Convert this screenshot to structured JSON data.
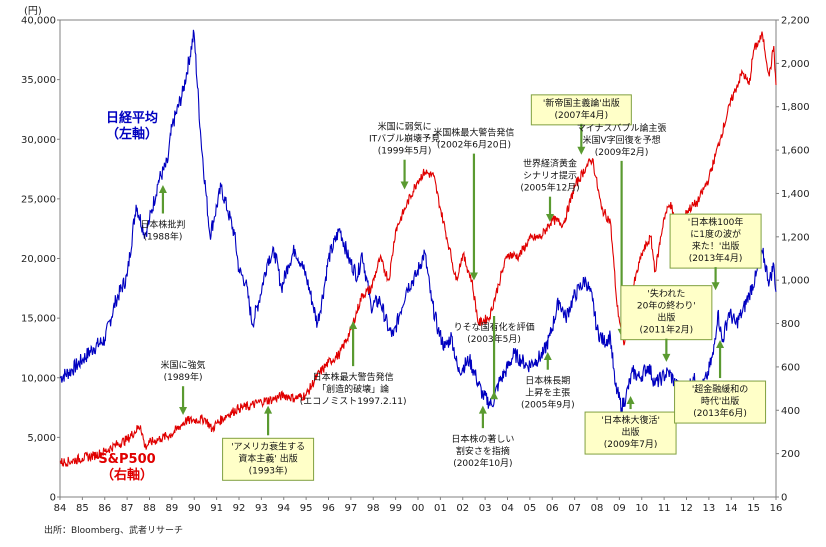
{
  "chart_data": {
    "type": "line",
    "y_unit_label": "(円)",
    "x_tick_labels": [
      "84",
      "85",
      "86",
      "87",
      "88",
      "89",
      "90",
      "91",
      "92",
      "93",
      "94",
      "95",
      "96",
      "97",
      "98",
      "99",
      "00",
      "01",
      "02",
      "03",
      "04",
      "05",
      "06",
      "07",
      "08",
      "09",
      "10",
      "11",
      "12",
      "13",
      "14",
      "15",
      "16"
    ],
    "x_range": [
      1984,
      2016
    ],
    "left_axis": {
      "ticks": [
        "0",
        "5,000",
        "10,000",
        "15,000",
        "20,000",
        "25,000",
        "30,000",
        "35,000",
        "40,000"
      ],
      "ylim": [
        0,
        40000
      ]
    },
    "right_axis": {
      "ticks": [
        "0",
        "200",
        "400",
        "600",
        "800",
        "1,000",
        "1,200",
        "1,400",
        "1,600",
        "1,800",
        "2,000",
        "2,200"
      ],
      "ylim": [
        0,
        2200
      ]
    },
    "series": [
      {
        "name": "日経平均\n（左軸）",
        "axis": "left",
        "color": "#0000c0",
        "points": [
          [
            1984.0,
            10000
          ],
          [
            1984.5,
            10600
          ],
          [
            1985.0,
            11500
          ],
          [
            1985.5,
            12500
          ],
          [
            1986.0,
            13200
          ],
          [
            1986.5,
            16500
          ],
          [
            1987.0,
            18500
          ],
          [
            1987.4,
            24500
          ],
          [
            1987.8,
            22000
          ],
          [
            1988.0,
            23200
          ],
          [
            1988.4,
            26500
          ],
          [
            1988.8,
            28000
          ],
          [
            1989.0,
            31000
          ],
          [
            1989.5,
            34000
          ],
          [
            1989.99,
            38900
          ],
          [
            1990.3,
            30000
          ],
          [
            1990.7,
            22000
          ],
          [
            1990.9,
            23500
          ],
          [
            1991.2,
            26000
          ],
          [
            1991.5,
            24000
          ],
          [
            1991.8,
            22000
          ],
          [
            1992.0,
            19000
          ],
          [
            1992.3,
            18000
          ],
          [
            1992.6,
            14500
          ],
          [
            1992.9,
            16500
          ],
          [
            1993.3,
            20000
          ],
          [
            1993.6,
            20500
          ],
          [
            1993.9,
            17500
          ],
          [
            1994.2,
            19500
          ],
          [
            1994.5,
            20800
          ],
          [
            1994.8,
            19500
          ],
          [
            1995.0,
            18500
          ],
          [
            1995.3,
            16200
          ],
          [
            1995.5,
            14500
          ],
          [
            1995.8,
            17500
          ],
          [
            1996.0,
            20000
          ],
          [
            1996.5,
            22500
          ],
          [
            1996.9,
            20000
          ],
          [
            1997.3,
            18500
          ],
          [
            1997.5,
            20500
          ],
          [
            1997.9,
            16000
          ],
          [
            1998.3,
            16500
          ],
          [
            1998.7,
            14000
          ],
          [
            1998.9,
            13500
          ],
          [
            1999.2,
            15500
          ],
          [
            1999.5,
            17500
          ],
          [
            1999.9,
            18500
          ],
          [
            2000.3,
            20500
          ],
          [
            2000.6,
            16500
          ],
          [
            2000.9,
            14000
          ],
          [
            2001.2,
            12500
          ],
          [
            2001.5,
            13500
          ],
          [
            2001.8,
            10500
          ],
          [
            2002.3,
            11500
          ],
          [
            2002.6,
            10000
          ],
          [
            2002.9,
            8500
          ],
          [
            2003.3,
            7700
          ],
          [
            2003.6,
            9500
          ],
          [
            2003.9,
            10500
          ],
          [
            2004.3,
            12000
          ],
          [
            2004.6,
            11500
          ],
          [
            2004.9,
            11000
          ],
          [
            2005.3,
            11500
          ],
          [
            2005.6,
            12000
          ],
          [
            2005.9,
            13500
          ],
          [
            2006.3,
            16500
          ],
          [
            2006.6,
            15000
          ],
          [
            2006.9,
            16500
          ],
          [
            2007.2,
            17500
          ],
          [
            2007.5,
            18200
          ],
          [
            2007.8,
            16500
          ],
          [
            2008.0,
            14000
          ],
          [
            2008.3,
            13000
          ],
          [
            2008.6,
            13500
          ],
          [
            2008.8,
            9500
          ],
          [
            2009.1,
            7500
          ],
          [
            2009.3,
            8500
          ],
          [
            2009.6,
            10500
          ],
          [
            2009.9,
            10000
          ],
          [
            2010.3,
            11000
          ],
          [
            2010.6,
            9500
          ],
          [
            2010.9,
            10000
          ],
          [
            2011.2,
            10500
          ],
          [
            2011.5,
            9500
          ],
          [
            2011.9,
            8500
          ],
          [
            2012.3,
            10000
          ],
          [
            2012.6,
            8800
          ],
          [
            2012.9,
            10000
          ],
          [
            2013.2,
            12000
          ],
          [
            2013.4,
            15500
          ],
          [
            2013.6,
            13000
          ],
          [
            2013.9,
            15500
          ],
          [
            2014.2,
            14500
          ],
          [
            2014.5,
            15500
          ],
          [
            2014.8,
            17000
          ],
          [
            2015.1,
            18500
          ],
          [
            2015.4,
            20500
          ],
          [
            2015.7,
            18000
          ],
          [
            2015.9,
            19500
          ],
          [
            2016.0,
            17200
          ]
        ]
      },
      {
        "name": "S&P500\n（右軸）",
        "axis": "right",
        "color": "#e00000",
        "points": [
          [
            1984.0,
            160
          ],
          [
            1984.5,
            165
          ],
          [
            1985.0,
            180
          ],
          [
            1985.5,
            190
          ],
          [
            1986.0,
            210
          ],
          [
            1986.5,
            240
          ],
          [
            1987.0,
            265
          ],
          [
            1987.6,
            330
          ],
          [
            1987.8,
            230
          ],
          [
            1988.0,
            250
          ],
          [
            1988.5,
            270
          ],
          [
            1989.0,
            290
          ],
          [
            1989.6,
            350
          ],
          [
            1989.99,
            355
          ],
          [
            1990.5,
            360
          ],
          [
            1990.8,
            310
          ],
          [
            1991.0,
            340
          ],
          [
            1991.5,
            380
          ],
          [
            1992.0,
            410
          ],
          [
            1992.5,
            420
          ],
          [
            1993.0,
            440
          ],
          [
            1993.5,
            450
          ],
          [
            1994.0,
            470
          ],
          [
            1994.5,
            455
          ],
          [
            1995.0,
            470
          ],
          [
            1995.5,
            560
          ],
          [
            1996.0,
            620
          ],
          [
            1996.5,
            660
          ],
          [
            1997.0,
            770
          ],
          [
            1997.5,
            930
          ],
          [
            1997.9,
            960
          ],
          [
            1998.3,
            1100
          ],
          [
            1998.7,
            1000
          ],
          [
            1999.0,
            1230
          ],
          [
            1999.5,
            1350
          ],
          [
            1999.99,
            1460
          ],
          [
            2000.3,
            1500
          ],
          [
            2000.7,
            1480
          ],
          [
            2001.0,
            1330
          ],
          [
            2001.4,
            1150
          ],
          [
            2001.7,
            1000
          ],
          [
            2002.0,
            1120
          ],
          [
            2002.4,
            1000
          ],
          [
            2002.7,
            800
          ],
          [
            2003.2,
            830
          ],
          [
            2003.6,
            980
          ],
          [
            2004.0,
            1120
          ],
          [
            2004.5,
            1110
          ],
          [
            2005.0,
            1190
          ],
          [
            2005.5,
            1200
          ],
          [
            2006.0,
            1280
          ],
          [
            2006.5,
            1260
          ],
          [
            2007.0,
            1430
          ],
          [
            2007.5,
            1520
          ],
          [
            2007.8,
            1560
          ],
          [
            2008.2,
            1330
          ],
          [
            2008.6,
            1270
          ],
          [
            2008.9,
            880
          ],
          [
            2009.2,
            700
          ],
          [
            2009.5,
            920
          ],
          [
            2010.0,
            1120
          ],
          [
            2010.4,
            1200
          ],
          [
            2010.6,
            1040
          ],
          [
            2011.0,
            1290
          ],
          [
            2011.3,
            1360
          ],
          [
            2011.7,
            1130
          ],
          [
            2012.0,
            1320
          ],
          [
            2012.5,
            1360
          ],
          [
            2013.0,
            1470
          ],
          [
            2013.5,
            1650
          ],
          [
            2014.0,
            1830
          ],
          [
            2014.5,
            1960
          ],
          [
            2014.8,
            1900
          ],
          [
            2015.0,
            2060
          ],
          [
            2015.4,
            2130
          ],
          [
            2015.7,
            1940
          ],
          [
            2015.9,
            2080
          ],
          [
            2016.0,
            1900
          ]
        ]
      }
    ],
    "annotations": [
      {
        "lines": [
          "日本株批判",
          "(1988年)"
        ],
        "box": false,
        "arrow": "up",
        "x": 1988.6,
        "value_axis": "left",
        "value": 26500,
        "text_y": 22600
      },
      {
        "lines": [
          "米国に強気",
          "(1989年)"
        ],
        "box": false,
        "arrow": "down",
        "x": 1989.5,
        "value_axis": "right",
        "value": 360,
        "text_y": 10800
      },
      {
        "lines": [
          "'アメリカ衰生する",
          "資本主義' 出版",
          "(1993年)"
        ],
        "box": true,
        "arrow": "up",
        "x": 1993.3,
        "value_axis": "right",
        "value": 440,
        "text_y": 4000
      },
      {
        "lines": [
          "米国に弱気に",
          "ITバブル崩壊予見",
          "(1999年5月)"
        ],
        "box": false,
        "arrow": "down",
        "x": 1999.4,
        "value_axis": "right",
        "value": 1400,
        "text_y": 30800
      },
      {
        "lines": [
          "日本株最大警告発信",
          "「創造的破壊」論",
          "(エコノミスト1997.2.11)"
        ],
        "box": false,
        "arrow": "up",
        "x": 1997.1,
        "value_axis": "right",
        "value": 830,
        "text_y": 9800
      },
      {
        "lines": [
          "米国株最大警告発信",
          "(2002年6月20日)"
        ],
        "box": false,
        "arrow": "down",
        "x": 2002.5,
        "value_axis": "right",
        "value": 980,
        "text_y": 30300
      },
      {
        "lines": [
          "りそな国有化を評価",
          "(2003年5月)"
        ],
        "box": false,
        "arrow": "up",
        "x": 2003.4,
        "value_axis": "left",
        "value": 9200,
        "text_y": 14000
      },
      {
        "lines": [
          "日本株の著しい",
          "割安さを指摘",
          "(2002年10月)"
        ],
        "box": false,
        "arrow": "up",
        "x": 2002.9,
        "value_axis": "left",
        "value": 8000,
        "text_y": 4600
      },
      {
        "lines": [
          "世界経済黄金",
          "シナリオ提示",
          "(2005年12月)"
        ],
        "box": false,
        "arrow": "down",
        "x": 2005.9,
        "value_axis": "right",
        "value": 1250,
        "text_y": 27700
      },
      {
        "lines": [
          "日本株長期",
          "上昇を主張",
          "(2005年9月)"
        ],
        "box": false,
        "arrow": "up",
        "x": 2005.8,
        "value_axis": "left",
        "value": 12500,
        "text_y": 9500
      },
      {
        "lines": [
          "'新帝国主義論'出版",
          "(2007年4月)"
        ],
        "box": true,
        "arrow": "down",
        "x": 2007.3,
        "value_axis": "right",
        "value": 1560,
        "text_y": 32800
      },
      {
        "lines": [
          "マイナスバブル論主張",
          "米国V字回復を予想",
          "(2009年2月)"
        ],
        "box": false,
        "arrow": "down",
        "x": 2009.1,
        "value_axis": "right",
        "value": 720,
        "text_y": 30700
      },
      {
        "lines": [
          "'日本株大復活'",
          "出版",
          "(2009年7月)"
        ],
        "box": true,
        "arrow": "up",
        "x": 2009.5,
        "value_axis": "left",
        "value": 8800,
        "text_y": 6200
      },
      {
        "lines": [
          "'失われた",
          "20年の終わり'",
          "出版",
          "(2011年2月)"
        ],
        "box": true,
        "arrow": "down",
        "x": 2011.1,
        "value_axis": "left",
        "value": 11000,
        "text_y": 16800
      },
      {
        "lines": [
          "'日本株100年",
          "に1度の波が",
          "来た！'出版",
          "(2013年4月)"
        ],
        "box": true,
        "arrow": "down",
        "x": 2013.3,
        "value_axis": "left",
        "value": 17000,
        "text_y": 22800
      },
      {
        "lines": [
          "'超金融緩和の",
          "時代'出版",
          "(2013年6月)"
        ],
        "box": true,
        "arrow": "up",
        "x": 2013.5,
        "value_axis": "left",
        "value": 13500,
        "text_y": 8800
      }
    ],
    "source": "出所：Bloomberg、武者リサーチ"
  }
}
